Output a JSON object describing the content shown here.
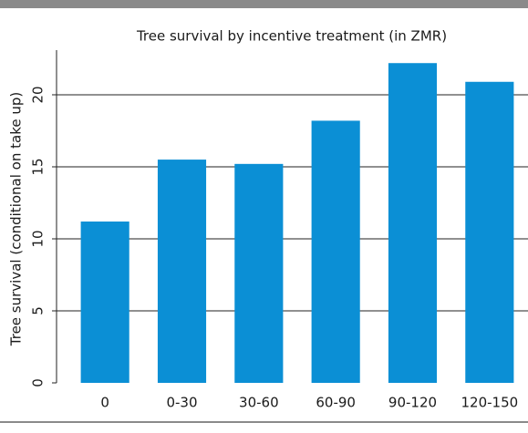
{
  "chart_data": {
    "type": "bar",
    "title": "Tree survival by incentive treatment (in ZMR)",
    "ylabel": "Tree survival (conditional on take up)",
    "categories": [
      "0",
      "0-30",
      "30-60",
      "60-90",
      "90-120",
      "120-150"
    ],
    "values": [
      11.2,
      15.5,
      15.2,
      18.2,
      22.2,
      20.9
    ],
    "color": "#0b8fd5",
    "ylim": [
      0,
      23.1
    ],
    "yticks": [
      0,
      5,
      10,
      15,
      20
    ],
    "grid": true
  }
}
